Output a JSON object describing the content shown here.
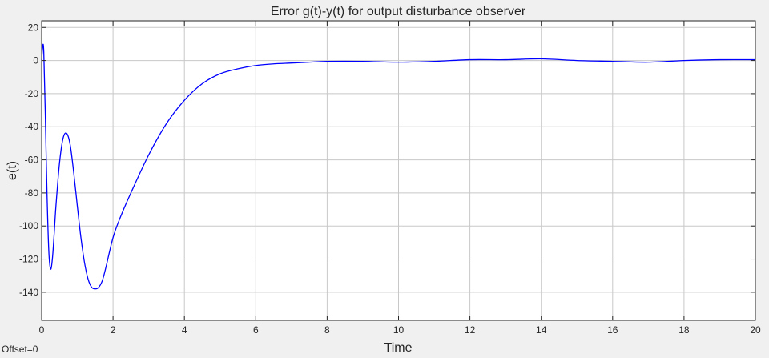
{
  "chart_data": {
    "type": "line",
    "title": "Error g(t)-y(t) for output disturbance observer",
    "xlabel": "Time",
    "ylabel": "e(t)",
    "xlim": [
      0,
      20
    ],
    "ylim": [
      -157,
      24
    ],
    "xticks": [
      0,
      2,
      4,
      6,
      8,
      10,
      12,
      14,
      16,
      18,
      20
    ],
    "yticks": [
      20,
      0,
      -20,
      -40,
      -60,
      -80,
      -100,
      -120,
      -140
    ],
    "grid": true,
    "line_color": "#0000ff",
    "series": [
      {
        "x": [
          0,
          0.03,
          0.06,
          0.1,
          0.15,
          0.2,
          0.25,
          0.3,
          0.35,
          0.4,
          0.5,
          0.6,
          0.7,
          0.8,
          0.9,
          1.0,
          1.1,
          1.2,
          1.3,
          1.4,
          1.5,
          1.6,
          1.7,
          1.8,
          2.0,
          2.2,
          2.5,
          3.0,
          3.5,
          4.0,
          4.5,
          5.0,
          5.5,
          6.0,
          6.5,
          7.0,
          7.5,
          8.0,
          9.0,
          10.0,
          11.0,
          12.0,
          13.0,
          14.0,
          15.0,
          16.0,
          17.0,
          18.0,
          19.0,
          20.0
        ],
        "values": [
          0,
          9,
          5,
          -30,
          -80,
          -115,
          -126,
          -120,
          -105,
          -88,
          -62,
          -47,
          -44,
          -51,
          -68,
          -88,
          -107,
          -122,
          -132,
          -137,
          -138,
          -137,
          -133,
          -125,
          -107,
          -95,
          -80,
          -57,
          -38,
          -24,
          -14,
          -8,
          -5,
          -3,
          -2,
          -1.5,
          -1,
          -0.5,
          -0.5,
          -1,
          -0.5,
          0.5,
          0.5,
          1,
          0,
          -0.5,
          -1,
          0,
          0.5,
          0.5
        ]
      }
    ]
  },
  "offset_label": "Offset=0"
}
